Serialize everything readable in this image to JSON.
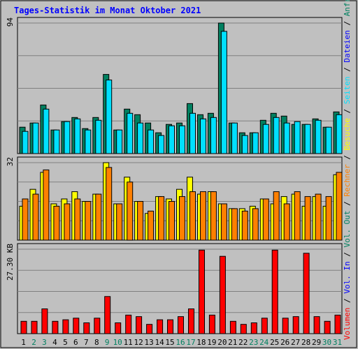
{
  "chart_data": {
    "type": "bar",
    "title": "Tages-Statistik im Monat Oktober 2021",
    "categories": [
      "1",
      "2",
      "3",
      "4",
      "5",
      "6",
      "7",
      "8",
      "9",
      "10",
      "11",
      "12",
      "13",
      "14",
      "15",
      "16",
      "17",
      "18",
      "19",
      "20",
      "21",
      "22",
      "23",
      "24",
      "25",
      "26",
      "27",
      "28",
      "29",
      "30",
      "31"
    ],
    "weekend_days": [
      "2",
      "3",
      "9",
      "10",
      "16",
      "17",
      "23",
      "24",
      "30",
      "31"
    ],
    "panels": [
      {
        "name": "top",
        "axis_label": "94",
        "ymax": 94,
        "series": [
          {
            "name": "Anfragen",
            "color": "#008060",
            "values": [
              19,
              22,
              35,
              17,
              23,
              26,
              18,
              26,
              57,
              17,
              32,
              28,
              22,
              15,
              21,
              22,
              36,
              28,
              29,
              94,
              22,
              15,
              15,
              24,
              29,
              27,
              21,
              21,
              25,
              19,
              30
            ]
          },
          {
            "name": "Dateien",
            "color": "#00e0ff",
            "values": [
              16,
              22,
              32,
              17,
              23,
              25,
              17,
              24,
              53,
              17,
              29,
              22,
              17,
              13,
              20,
              20,
              29,
              25,
              26,
              88,
              22,
              13,
              15,
              21,
              26,
              22,
              23,
              21,
              24,
              19,
              28
            ]
          }
        ]
      },
      {
        "name": "middle",
        "axis_label": "32",
        "ymax": 32,
        "series": [
          {
            "name": "Besuche",
            "color": "#ffff00",
            "values": [
              14,
              21,
              28,
              15,
              17,
              20,
              16,
              19,
              32,
              15,
              26,
              16,
              11,
              18,
              17,
              21,
              26,
              19,
              20,
              15,
              13,
              13,
              14,
              17,
              15,
              18,
              19,
              14,
              18,
              14,
              27
            ]
          },
          {
            "name": "Rechner",
            "color": "#ff8000",
            "values": [
              17,
              19,
              29,
              14,
              15,
              17,
              16,
              19,
              30,
              15,
              24,
              16,
              12,
              18,
              16,
              18,
              20,
              20,
              20,
              15,
              13,
              12,
              13,
              17,
              20,
              15,
              20,
              18,
              19,
              18,
              28
            ]
          }
        ]
      },
      {
        "name": "bottom",
        "axis_label": "27.30 KB",
        "ymax": 27.3,
        "series": [
          {
            "name": "Volumen",
            "color": "#ff0000",
            "values": [
              4,
              4,
              8,
              4,
              4.5,
              5,
              3.5,
              5,
              12,
              3.5,
              6,
              5.5,
              3,
              4.5,
              4.5,
              5.5,
              8,
              27,
              6,
              25,
              4,
              3,
              3.5,
              5,
              27,
              5,
              5.5,
              26,
              5.5,
              4,
              6
            ]
          }
        ]
      }
    ],
    "right_legend": [
      {
        "text": "Volumen",
        "color": "#ff0000"
      },
      {
        "text": "Vol. In",
        "color": "#0000ff"
      },
      {
        "text": "Vol. Out",
        "color": "#008060"
      },
      {
        "text": "Rechner",
        "color": "#ff8000"
      },
      {
        "text": "Besuche",
        "color": "#ffff00"
      },
      {
        "text": "Seiten",
        "color": "#00e0ff"
      },
      {
        "text": "Dateien",
        "color": "#0000ff"
      },
      {
        "text": "Anfragen",
        "color": "#008060"
      }
    ],
    "legend_separator": "/",
    "grid": true
  }
}
